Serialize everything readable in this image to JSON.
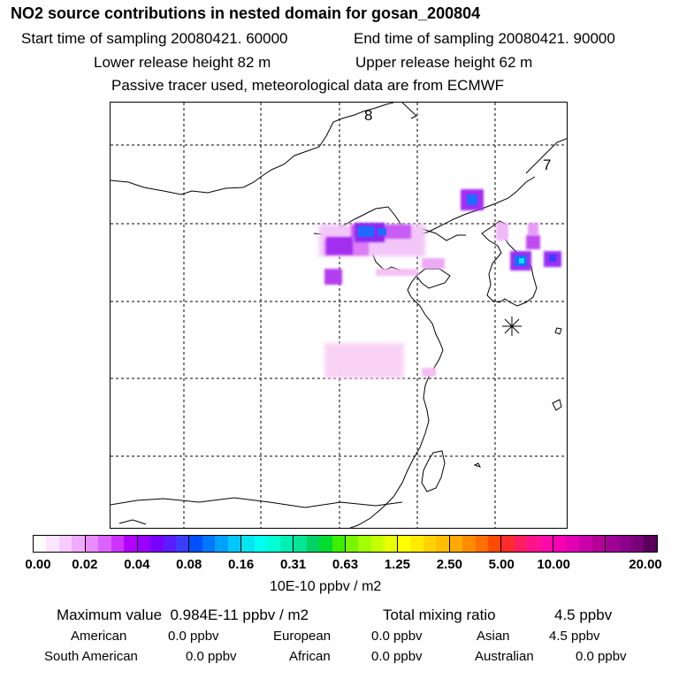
{
  "header": {
    "title": "NO2 source contributions in nested domain for gosan_200804",
    "start_time": "Start time of sampling 20080421. 60000",
    "end_time": "End time of sampling 20080421. 90000",
    "lower_release": "Lower release height   82 m",
    "upper_release": "Upper release height   62 m",
    "tracer_note": "Passive tracer used, meteorological data are from ECMWF"
  },
  "map": {
    "labels": [
      "8",
      "7"
    ],
    "site_marker": "asterisk-receptor-icon"
  },
  "colorbar": {
    "tick_labels": [
      "0.00",
      "0.02",
      "0.04",
      "0.08",
      "0.16",
      "0.31",
      "0.63",
      "1.25",
      "2.50",
      "5.00",
      "10.00",
      "20.00"
    ],
    "units": "10E-10 ppbv / m2",
    "colors": [
      [
        "#ffffff",
        "#fbe5ff",
        "#f6cbff",
        "#f0aaff"
      ],
      [
        "#e88cff",
        "#dc63ff",
        "#cc33ff",
        "#b400ff"
      ],
      [
        "#9a00ff",
        "#7800ff",
        "#5a1cff",
        "#3c3cff"
      ],
      [
        "#0050ff",
        "#0078ff",
        "#00a0ff",
        "#00c8ff"
      ],
      [
        "#00e6f0",
        "#00fff0",
        "#00ffd2",
        "#00f0b4"
      ],
      [
        "#00e696",
        "#00d264",
        "#00dc32",
        "#3cf000"
      ],
      [
        "#78f500",
        "#a0ff00",
        "#c8ff00",
        "#e6ff00"
      ],
      [
        "#ffff00",
        "#ffeb00",
        "#ffd200",
        "#ffbe00"
      ],
      [
        "#ffaa00",
        "#ff8c00",
        "#ff6e00",
        "#ff4b00"
      ],
      [
        "#ff2d2d",
        "#ff1e64",
        "#ff148c",
        "#ff0aaa"
      ],
      [
        "#f500b4",
        "#e100b4",
        "#c800aa",
        "#b40096"
      ],
      [
        "#a00096",
        "#8c008c",
        "#780078",
        "#5a005a"
      ]
    ]
  },
  "summary": {
    "max_label": "Maximum value",
    "max_value": "0.984E-11 ppbv / m2",
    "total_label": "Total mixing ratio",
    "total_value": "4.5 ppbv",
    "sources": [
      {
        "name": "American",
        "value": "0.0 ppbv"
      },
      {
        "name": "European",
        "value": "0.0 ppbv"
      },
      {
        "name": "Asian",
        "value": "4.5 ppbv"
      },
      {
        "name": "South American",
        "value": "0.0 ppbv"
      },
      {
        "name": "African",
        "value": "0.0 ppbv"
      },
      {
        "name": "Australian",
        "value": "0.0 ppbv"
      }
    ]
  }
}
